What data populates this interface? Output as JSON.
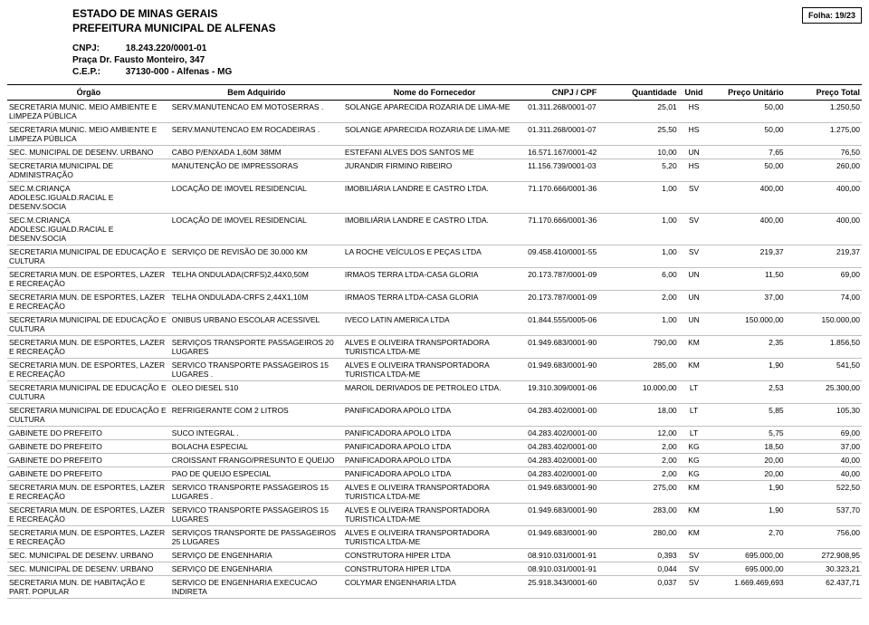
{
  "header": {
    "state": "ESTADO DE MINAS GERAIS",
    "city": "PREFEITURA MUNICIPAL DE ALFENAS",
    "folha_label": "Folha:",
    "folha_value": "19/23",
    "cnpj_label": "CNPJ:",
    "cnpj_value": "18.243.220/0001-01",
    "address": "Praça Dr. Fausto Monteiro, 347",
    "cep_label": "C.E.P.:",
    "cep_value": "37130-000    - Alfenas - MG"
  },
  "columns": {
    "c0": "Órgão",
    "c1": "Bem Adquirido",
    "c2": "Nome do Fornecedor",
    "c3": "CNPJ / CPF",
    "c4": "Quantidade",
    "c5": "Unid",
    "c6": "Preço Unitário",
    "c7": "Preço Total"
  },
  "rows": [
    {
      "c0": "SECRETARIA MUNIC. MEIO AMBIENTE E LIMPEZA PÚBLICA",
      "c1": "SERV.MANUTENCAO EM MOTOSERRAS .",
      "c2": "SOLANGE APARECIDA ROZARIA DE LIMA-ME",
      "c3": "01.311.268/0001-07",
      "c4": "25,01",
      "c5": "HS",
      "c6": "50,00",
      "c7": "1.250,50"
    },
    {
      "c0": "SECRETARIA MUNIC. MEIO AMBIENTE E LIMPEZA PÚBLICA",
      "c1": "SERV.MANUTENCAO EM ROCADEIRAS .",
      "c2": "SOLANGE APARECIDA ROZARIA DE LIMA-ME",
      "c3": "01.311.268/0001-07",
      "c4": "25,50",
      "c5": "HS",
      "c6": "50,00",
      "c7": "1.275,00"
    },
    {
      "c0": "SEC. MUNICIPAL DE DESENV. URBANO",
      "c1": "CABO P/ENXADA 1,60M 38MM",
      "c2": "ESTEFANI ALVES DOS SANTOS ME",
      "c3": "16.571.167/0001-42",
      "c4": "10,00",
      "c5": "UN",
      "c6": "7,65",
      "c7": "76,50"
    },
    {
      "c0": "SECRETARIA MUNICIPAL DE ADMINISTRAÇÃO",
      "c1": "MANUTENÇÃO DE IMPRESSORAS",
      "c2": "JURANDIR FIRMINO RIBEIRO",
      "c3": "11.156.739/0001-03",
      "c4": "5,20",
      "c5": "HS",
      "c6": "50,00",
      "c7": "260,00"
    },
    {
      "c0": "SEC.M.CRIANÇA ADOLESC.IGUALD.RACIAL E DESENV.SOCIA",
      "c1": "LOCAÇÃO DE IMOVEL RESIDENCIAL",
      "c2": "IMOBILIÁRIA LANDRE E CASTRO LTDA.",
      "c3": "71.170.666/0001-36",
      "c4": "1,00",
      "c5": "SV",
      "c6": "400,00",
      "c7": "400,00"
    },
    {
      "c0": "SEC.M.CRIANÇA ADOLESC.IGUALD.RACIAL E DESENV.SOCIA",
      "c1": "LOCAÇÃO DE IMOVEL RESIDENCIAL",
      "c2": "IMOBILIÁRIA LANDRE E CASTRO LTDA.",
      "c3": "71.170.666/0001-36",
      "c4": "1,00",
      "c5": "SV",
      "c6": "400,00",
      "c7": "400,00"
    },
    {
      "c0": "SECRETARIA MUNICIPAL DE EDUCAÇÃO E CULTURA",
      "c1": "SERVIÇO DE REVISÃO DE 30.000 KM",
      "c2": "LA ROCHE VEÍCULOS E PEÇAS LTDA",
      "c3": "09.458.410/0001-55",
      "c4": "1,00",
      "c5": "SV",
      "c6": "219,37",
      "c7": "219,37"
    },
    {
      "c0": "SECRETARIA MUN. DE ESPORTES, LAZER E RECREAÇÃO",
      "c1": "TELHA ONDULADA(CRFS)2,44X0,50M",
      "c2": "IRMAOS TERRA LTDA-CASA GLORIA",
      "c3": "20.173.787/0001-09",
      "c4": "6,00",
      "c5": "UN",
      "c6": "11,50",
      "c7": "69,00"
    },
    {
      "c0": "SECRETARIA MUN. DE ESPORTES, LAZER E RECREAÇÃO",
      "c1": "TELHA ONDULADA-CRFS 2,44X1,10M",
      "c2": "IRMAOS TERRA LTDA-CASA GLORIA",
      "c3": "20.173.787/0001-09",
      "c4": "2,00",
      "c5": "UN",
      "c6": "37,00",
      "c7": "74,00"
    },
    {
      "c0": "SECRETARIA MUNICIPAL DE EDUCAÇÃO E CULTURA",
      "c1": "ONIBUS URBANO ESCOLAR ACESSIVEL",
      "c2": "IVECO LATIN AMERICA LTDA",
      "c3": "01.844.555/0005-06",
      "c4": "1,00",
      "c5": "UN",
      "c6": "150.000,00",
      "c7": "150.000,00"
    },
    {
      "c0": "SECRETARIA MUN. DE ESPORTES, LAZER E RECREAÇÃO",
      "c1": "SERVIÇOS TRANSPORTE PASSAGEIROS 20 LUGARES",
      "c2": "ALVES E OLIVEIRA TRANSPORTADORA TURISTICA LTDA-ME",
      "c3": "01.949.683/0001-90",
      "c4": "790,00",
      "c5": "KM",
      "c6": "2,35",
      "c7": "1.856,50"
    },
    {
      "c0": "SECRETARIA MUN. DE ESPORTES, LAZER E RECREAÇÃO",
      "c1": "SERVICO TRANSPORTE PASSAGEIROS 15 LUGARES          .",
      "c2": "ALVES E OLIVEIRA TRANSPORTADORA TURISTICA LTDA-ME",
      "c3": "01.949.683/0001-90",
      "c4": "285,00",
      "c5": "KM",
      "c6": "1,90",
      "c7": "541,50"
    },
    {
      "c0": "SECRETARIA MUNICIPAL DE EDUCAÇÃO E CULTURA",
      "c1": "OLEO DIESEL S10",
      "c2": "MAROIL DERIVADOS DE PETROLEO LTDA.",
      "c3": "19.310.309/0001-06",
      "c4": "10.000,00",
      "c5": "LT",
      "c6": "2,53",
      "c7": "25.300,00"
    },
    {
      "c0": "SECRETARIA MUNICIPAL DE EDUCAÇÃO E CULTURA",
      "c1": "REFRIGERANTE COM 2 LITROS",
      "c2": "PANIFICADORA APOLO LTDA",
      "c3": "04.283.402/0001-00",
      "c4": "18,00",
      "c5": "LT",
      "c6": "5,85",
      "c7": "105,30"
    },
    {
      "c0": "GABINETE DO PREFEITO",
      "c1": "SUCO INTEGRAL                      .",
      "c2": "PANIFICADORA APOLO LTDA",
      "c3": "04.283.402/0001-00",
      "c4": "12,00",
      "c5": "LT",
      "c6": "5,75",
      "c7": "69,00"
    },
    {
      "c0": "GABINETE DO PREFEITO",
      "c1": "BOLACHA ESPECIAL",
      "c2": "PANIFICADORA APOLO LTDA",
      "c3": "04.283.402/0001-00",
      "c4": "2,00",
      "c5": "KG",
      "c6": "18,50",
      "c7": "37,00"
    },
    {
      "c0": "GABINETE DO PREFEITO",
      "c1": "CROISSANT FRANGO/PRESUNTO E QUEIJO",
      "c2": "PANIFICADORA APOLO LTDA",
      "c3": "04.283.402/0001-00",
      "c4": "2,00",
      "c5": "KG",
      "c6": "20,00",
      "c7": "40,00"
    },
    {
      "c0": "GABINETE DO PREFEITO",
      "c1": "PAO DE QUEIJO ESPECIAL",
      "c2": "PANIFICADORA APOLO LTDA",
      "c3": "04.283.402/0001-00",
      "c4": "2,00",
      "c5": "KG",
      "c6": "20,00",
      "c7": "40,00"
    },
    {
      "c0": "SECRETARIA MUN. DE ESPORTES, LAZER E RECREAÇÃO",
      "c1": "SERVICO TRANSPORTE PASSAGEIROS 15 LUGARES          .",
      "c2": "ALVES E OLIVEIRA TRANSPORTADORA TURISTICA LTDA-ME",
      "c3": "01.949.683/0001-90",
      "c4": "275,00",
      "c5": "KM",
      "c6": "1,90",
      "c7": "522,50"
    },
    {
      "c0": "SECRETARIA MUN. DE ESPORTES, LAZER E RECREAÇÃO",
      "c1": "SERVICO TRANSPORTE PASSAGEIROS 15 LUGARES",
      "c2": "ALVES E OLIVEIRA TRANSPORTADORA TURISTICA LTDA-ME",
      "c3": "01.949.683/0001-90",
      "c4": "283,00",
      "c5": "KM",
      "c6": "1,90",
      "c7": "537,70"
    },
    {
      "c0": "SECRETARIA MUN. DE ESPORTES, LAZER E RECREAÇÃO",
      "c1": "SERVIÇOS TRANSPORTE DE PASSAGEIROS 25 LUGARES",
      "c2": "ALVES E OLIVEIRA TRANSPORTADORA TURISTICA LTDA-ME",
      "c3": "01.949.683/0001-90",
      "c4": "280,00",
      "c5": "KM",
      "c6": "2,70",
      "c7": "756,00"
    },
    {
      "c0": "SEC. MUNICIPAL DE DESENV. URBANO",
      "c1": "SERVIÇO DE ENGENHARIA",
      "c2": "CONSTRUTORA HIPER LTDA",
      "c3": "08.910.031/0001-91",
      "c4": "0,393",
      "c5": "SV",
      "c6": "695.000,00",
      "c7": "272.908,95"
    },
    {
      "c0": "SEC. MUNICIPAL DE DESENV. URBANO",
      "c1": "SERVIÇO DE ENGENHARIA",
      "c2": "CONSTRUTORA HIPER LTDA",
      "c3": "08.910.031/0001-91",
      "c4": "0,044",
      "c5": "SV",
      "c6": "695.000,00",
      "c7": "30.323,21"
    },
    {
      "c0": "SECRETARIA MUN. DE HABITAÇÃO E PART. POPULAR",
      "c1": "SERVICO DE ENGENHARIA EXECUCAO INDIRETA",
      "c2": "COLYMAR ENGENHARIA LTDA",
      "c3": "25.918.343/0001-60",
      "c4": "0,037",
      "c5": "SV",
      "c6": "1.669.469,693",
      "c7": "62.437,71"
    }
  ]
}
